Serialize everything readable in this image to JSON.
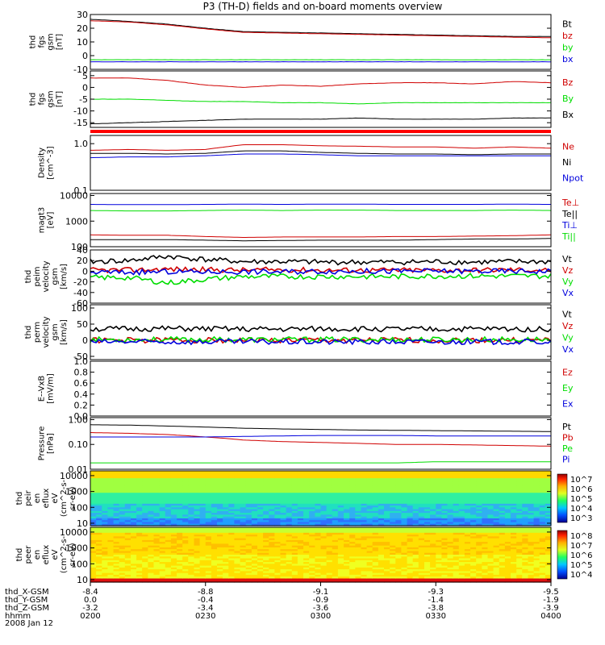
{
  "title": "P3 (TH-D) fields and on-board moments overview",
  "date_label": "2008 Jan 12",
  "ephemeris": {
    "rows": [
      {
        "label": "thd_X-GSM",
        "values": [
          "-8.4",
          "-8.8",
          "-9.1",
          "-9.3",
          "-9.5"
        ]
      },
      {
        "label": "thd_Y-GSM",
        "values": [
          "0.0",
          "-0.4",
          "-0.9",
          "-1.4",
          "-1.9"
        ]
      },
      {
        "label": "thd_Z-GSM",
        "values": [
          "-3.2",
          "-3.4",
          "-3.6",
          "-3.8",
          "-3.9"
        ]
      },
      {
        "label": "hhmm",
        "values": [
          "0200",
          "0230",
          "0300",
          "0330",
          "0400"
        ]
      }
    ]
  },
  "colors": {
    "black": "#000000",
    "red": "#d00000",
    "green": "#00dd00",
    "blue": "#0000dd",
    "axis": "#000000"
  },
  "chart_data": [
    {
      "type": "line",
      "ylabel_lines": [
        "thd",
        "fgs",
        "gsm",
        "[nT]"
      ],
      "ylim": [
        -10,
        30
      ],
      "yticks": [
        -10,
        0,
        10,
        20,
        30
      ],
      "x": [
        0,
        10,
        20,
        30,
        40,
        50,
        60,
        70,
        80,
        90,
        100,
        110,
        120
      ],
      "series": [
        {
          "name": "Bt",
          "color": "#000000",
          "values": [
            26.5,
            25,
            23,
            20,
            17.5,
            17,
            16.5,
            16,
            15.5,
            15,
            14.5,
            14,
            14
          ]
        },
        {
          "name": "bz",
          "color": "#d00000",
          "values": [
            25.5,
            24.5,
            22.5,
            19.5,
            17,
            16.5,
            16,
            15.5,
            15,
            14.5,
            14,
            13.5,
            13
          ]
        },
        {
          "name": "by",
          "color": "#00dd00",
          "values": [
            -3,
            -3,
            -3,
            -3,
            -3,
            -3,
            -3,
            -3,
            -3,
            -3,
            -3,
            -3,
            -3
          ]
        },
        {
          "name": "bx",
          "color": "#0000dd",
          "values": [
            -4.5,
            -4.5,
            -4.5,
            -4.5,
            -4.5,
            -4.5,
            -4.5,
            -4.5,
            -4.5,
            -4.5,
            -4.5,
            -4.5,
            -4.5
          ]
        }
      ]
    },
    {
      "type": "line",
      "ylabel_lines": [
        "thd",
        "fgs",
        "gsm",
        "[nT]"
      ],
      "ylim": [
        -17,
        7
      ],
      "yticks": [
        -15,
        -10,
        -5,
        0,
        5
      ],
      "x": [
        0,
        10,
        20,
        30,
        40,
        50,
        60,
        70,
        80,
        90,
        100,
        110,
        120
      ],
      "series": [
        {
          "name": "Bz",
          "color": "#d00000",
          "values": [
            4,
            4,
            3,
            1,
            0,
            1,
            0.5,
            1.5,
            2,
            2,
            1.5,
            2.5,
            2
          ]
        },
        {
          "name": "By",
          "color": "#00dd00",
          "values": [
            -5,
            -5,
            -5.5,
            -6,
            -6,
            -6.5,
            -6.5,
            -7,
            -6.5,
            -6.5,
            -6.5,
            -6.5,
            -6.5
          ]
        },
        {
          "name": "Bx",
          "color": "#000000",
          "values": [
            -15.5,
            -15,
            -14.5,
            -14,
            -13.5,
            -13.5,
            -13.5,
            -13,
            -13.5,
            -13.5,
            -13.5,
            -13,
            -13
          ]
        }
      ]
    },
    {
      "type": "line",
      "ylabel_lines": [
        "Density",
        "[cm^-3]"
      ],
      "scale": "log",
      "ylim": [
        0.1,
        1.5
      ],
      "yticks": [
        0.1,
        1.0
      ],
      "ytick_labels": [
        "0.1",
        "1.0"
      ],
      "x": [
        0,
        10,
        20,
        30,
        40,
        50,
        60,
        70,
        80,
        90,
        100,
        110,
        120
      ],
      "series": [
        {
          "name": "Ne",
          "color": "#d00000",
          "values": [
            0.72,
            0.75,
            0.72,
            0.75,
            0.95,
            0.95,
            0.9,
            0.88,
            0.85,
            0.85,
            0.8,
            0.85,
            0.8
          ]
        },
        {
          "name": "Ni",
          "color": "#000000",
          "values": [
            0.62,
            0.62,
            0.6,
            0.62,
            0.7,
            0.7,
            0.65,
            0.62,
            0.6,
            0.6,
            0.58,
            0.6,
            0.6
          ]
        },
        {
          "name": "Npot",
          "color": "#0000dd",
          "values": [
            0.5,
            0.52,
            0.52,
            0.55,
            0.6,
            0.6,
            0.58,
            0.55,
            0.55,
            0.55,
            0.55,
            0.55,
            0.55
          ]
        }
      ]
    },
    {
      "type": "line",
      "ylabel_lines": [
        "magt3",
        "[eV]"
      ],
      "scale": "log",
      "ylim": [
        100,
        12000
      ],
      "yticks": [
        100,
        1000,
        10000
      ],
      "ytick_labels": [
        "100",
        "1000",
        "10000"
      ],
      "x": [
        0,
        10,
        20,
        30,
        40,
        50,
        60,
        70,
        80,
        90,
        100,
        110,
        120
      ],
      "series": [
        {
          "name": "Te⊥",
          "color": "#d00000",
          "values": [
            290,
            280,
            280,
            250,
            230,
            240,
            240,
            240,
            250,
            250,
            260,
            270,
            290
          ]
        },
        {
          "name": "Te||",
          "color": "#000000",
          "values": [
            190,
            190,
            190,
            180,
            170,
            175,
            180,
            180,
            180,
            190,
            200,
            200,
            210
          ]
        },
        {
          "name": "Ti⊥",
          "color": "#0000dd",
          "values": [
            4500,
            4400,
            4400,
            4500,
            4600,
            4500,
            4600,
            4600,
            4500,
            4500,
            4500,
            4600,
            4500
          ]
        },
        {
          "name": "Ti||",
          "color": "#00dd00",
          "values": [
            2600,
            2500,
            2500,
            2600,
            2700,
            2600,
            2700,
            2700,
            2600,
            2600,
            2600,
            2700,
            2600
          ]
        }
      ]
    },
    {
      "type": "line",
      "ylabel_lines": [
        "thd",
        "peim",
        "velocity",
        "gsm",
        "[km/s]"
      ],
      "ylim": [
        -60,
        40
      ],
      "yticks": [
        -60,
        -40,
        -20,
        0,
        20,
        40
      ],
      "x": [
        0,
        10,
        20,
        30,
        40,
        50,
        60,
        70,
        80,
        90,
        100,
        110,
        120
      ],
      "series": [
        {
          "name": "Vt",
          "color": "#000000",
          "values": [
            18,
            20,
            28,
            22,
            18,
            18,
            17,
            17,
            17,
            18,
            17,
            18,
            18
          ]
        },
        {
          "name": "Vz",
          "color": "#d00000",
          "values": [
            2,
            2,
            4,
            3,
            2,
            3,
            2,
            2,
            2,
            2,
            2,
            3,
            2
          ]
        },
        {
          "name": "Vy",
          "color": "#00dd00",
          "values": [
            -12,
            -12,
            -22,
            -15,
            -10,
            -10,
            -10,
            -10,
            -10,
            -9,
            -9,
            -9,
            -9
          ]
        },
        {
          "name": "Vx",
          "color": "#0000dd",
          "values": [
            -2,
            -2,
            -1,
            -1,
            -1,
            -1,
            0,
            0,
            0,
            0,
            0,
            0,
            0
          ]
        }
      ]
    },
    {
      "type": "line",
      "ylabel_lines": [
        "thd",
        "perm",
        "velocity",
        "gsm",
        "[km/s]"
      ],
      "ylim": [
        -60,
        110
      ],
      "yticks": [
        -50,
        0,
        50,
        100
      ],
      "x": [
        0,
        10,
        20,
        30,
        40,
        50,
        60,
        70,
        80,
        90,
        100,
        110,
        120
      ],
      "series": [
        {
          "name": "Vt",
          "color": "#000000",
          "values": [
            35,
            35,
            36,
            35,
            34,
            34,
            35,
            35,
            34,
            34,
            35,
            35,
            34
          ]
        },
        {
          "name": "Vz",
          "color": "#d00000",
          "values": [
            0,
            0,
            0,
            0,
            0,
            0,
            0,
            0,
            0,
            0,
            0,
            0,
            0
          ]
        },
        {
          "name": "Vy",
          "color": "#00dd00",
          "values": [
            2,
            2,
            2,
            2,
            2,
            2,
            2,
            2,
            2,
            2,
            2,
            2,
            2
          ]
        },
        {
          "name": "Vx",
          "color": "#0000dd",
          "values": [
            -5,
            -5,
            -5,
            -5,
            -5,
            -5,
            -5,
            -5,
            -5,
            -5,
            -5,
            -5,
            -5
          ]
        }
      ]
    },
    {
      "type": "line",
      "ylabel_lines": [
        "E--VxB",
        "[mV/m]"
      ],
      "ylim": [
        0,
        1
      ],
      "yticks": [
        0,
        0.2,
        0.4,
        0.6,
        0.8,
        1.0
      ],
      "ytick_labels": [
        "0.0",
        "0.2",
        "0.4",
        "0.6",
        "0.8",
        "1.0"
      ],
      "x": [],
      "series": [
        {
          "name": "Ez",
          "color": "#d00000",
          "values": []
        },
        {
          "name": "Ey",
          "color": "#00dd00",
          "values": []
        },
        {
          "name": "Ex",
          "color": "#0000dd",
          "values": []
        }
      ]
    },
    {
      "type": "line",
      "ylabel_lines": [
        "Pressure",
        "[nPa]"
      ],
      "scale": "log",
      "ylim": [
        0.01,
        1.2
      ],
      "yticks": [
        0.01,
        0.1,
        1.0
      ],
      "ytick_labels": [
        "0.01",
        "0.10",
        "1.00"
      ],
      "x": [
        0,
        10,
        20,
        30,
        40,
        50,
        60,
        70,
        80,
        90,
        100,
        110,
        120
      ],
      "series": [
        {
          "name": "Pt",
          "color": "#000000",
          "values": [
            0.62,
            0.6,
            0.55,
            0.5,
            0.45,
            0.42,
            0.4,
            0.38,
            0.37,
            0.36,
            0.35,
            0.34,
            0.33
          ]
        },
        {
          "name": "Pb",
          "color": "#d00000",
          "values": [
            0.3,
            0.28,
            0.25,
            0.2,
            0.15,
            0.13,
            0.12,
            0.11,
            0.1,
            0.1,
            0.095,
            0.09,
            0.085
          ]
        },
        {
          "name": "Pe",
          "color": "#00dd00",
          "values": [
            0.018,
            0.018,
            0.018,
            0.018,
            0.018,
            0.018,
            0.018,
            0.018,
            0.018,
            0.02,
            0.02,
            0.02,
            0.02
          ]
        },
        {
          "name": "Pi",
          "color": "#0000dd",
          "values": [
            0.2,
            0.2,
            0.2,
            0.2,
            0.21,
            0.22,
            0.23,
            0.23,
            0.23,
            0.22,
            0.22,
            0.22,
            0.22
          ]
        }
      ]
    },
    {
      "type": "heatmap",
      "ylabel_lines": [
        "thd",
        "peir",
        "en",
        "eflux",
        "eV",
        "(cm^2-s-",
        "sr-eV)"
      ],
      "scale": "log",
      "ylim": [
        7,
        20000
      ],
      "yticks": [
        10,
        100,
        1000,
        10000
      ],
      "ytick_labels": [
        "10",
        "100",
        "1000",
        "10000"
      ],
      "colorbar": {
        "labels": [
          "10^7",
          "10^6",
          "10^5",
          "10^4",
          "10^3"
        ],
        "min": 1000,
        "max": 10000000
      }
    },
    {
      "type": "heatmap",
      "ylabel_lines": [
        "thd",
        "peer",
        "en",
        "eflux",
        "eV",
        "(cm^2-s-",
        "sr-eV)"
      ],
      "scale": "log",
      "ylim": [
        7,
        20000
      ],
      "yticks": [
        10,
        100,
        1000,
        10000
      ],
      "ytick_labels": [
        "10",
        "100",
        "1000",
        "10000"
      ],
      "colorbar": {
        "labels": [
          "10^8",
          "10^7",
          "10^6",
          "10^5",
          "10^4"
        ],
        "min": 10000,
        "max": 100000000
      }
    }
  ]
}
